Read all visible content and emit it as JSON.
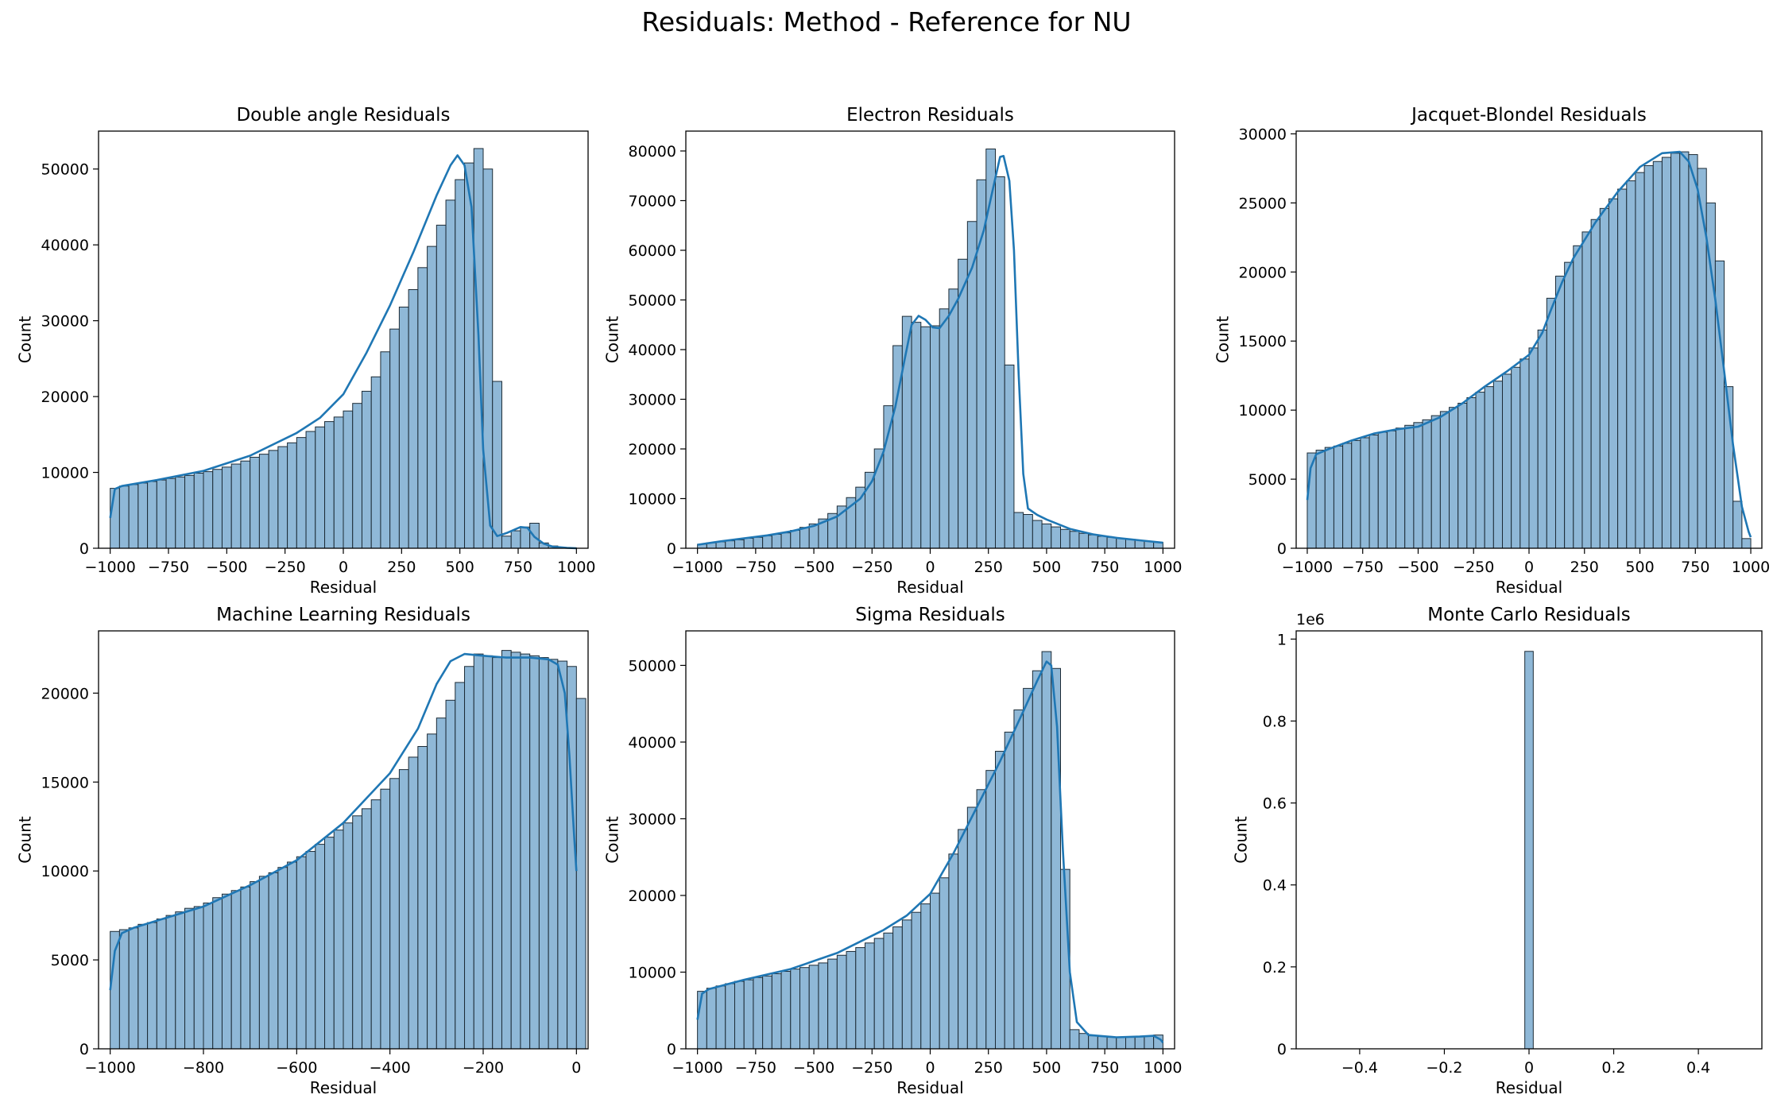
{
  "figure": {
    "title": "Residuals: Method - Reference for NU",
    "colors": {
      "bar_fill": "#8fb8d7",
      "bar_edge": "#1c2b36",
      "kde_line": "#1f77b4"
    }
  },
  "chart_data": [
    {
      "type": "bar",
      "title": "Double angle Residuals",
      "xlabel": "Residual",
      "ylabel": "Count",
      "xlim": [
        -1050,
        1050
      ],
      "ylim": [
        0,
        55000
      ],
      "xticks": [
        -1000,
        -750,
        -500,
        -250,
        0,
        250,
        500,
        750,
        1000
      ],
      "yticks": [
        0,
        10000,
        20000,
        30000,
        40000,
        50000
      ],
      "bin_start": -1000,
      "bin_width": 40,
      "values": [
        7900,
        8200,
        8400,
        8600,
        8800,
        9000,
        9200,
        9400,
        9600,
        9900,
        10100,
        10400,
        10700,
        11100,
        11500,
        12000,
        12400,
        12900,
        13400,
        13900,
        14600,
        15400,
        16000,
        16700,
        17300,
        18100,
        19100,
        20700,
        22600,
        25900,
        28900,
        31800,
        34100,
        37000,
        39800,
        42600,
        45900,
        48600,
        50800,
        52700,
        50000,
        22000,
        1600,
        2300,
        2800,
        3300,
        700,
        300,
        100,
        50
      ],
      "kde": [
        [
          -1000,
          4000
        ],
        [
          -980,
          7800
        ],
        [
          -950,
          8200
        ],
        [
          -800,
          9000
        ],
        [
          -600,
          10200
        ],
        [
          -400,
          12200
        ],
        [
          -200,
          15200
        ],
        [
          -100,
          17200
        ],
        [
          0,
          20300
        ],
        [
          100,
          25800
        ],
        [
          200,
          32000
        ],
        [
          300,
          39000
        ],
        [
          400,
          46500
        ],
        [
          460,
          50500
        ],
        [
          490,
          51800
        ],
        [
          520,
          50500
        ],
        [
          550,
          45000
        ],
        [
          580,
          28000
        ],
        [
          600,
          13000
        ],
        [
          630,
          3000
        ],
        [
          660,
          1600
        ],
        [
          700,
          2000
        ],
        [
          760,
          2800
        ],
        [
          790,
          2700
        ],
        [
          820,
          1500
        ],
        [
          860,
          600
        ],
        [
          900,
          200
        ],
        [
          960,
          50
        ],
        [
          1000,
          0
        ]
      ]
    },
    {
      "type": "bar",
      "title": "Electron Residuals",
      "xlabel": "Residual",
      "ylabel": "Count",
      "xlim": [
        -1050,
        1050
      ],
      "ylim": [
        0,
        84000
      ],
      "xticks": [
        -1000,
        -750,
        -500,
        -250,
        0,
        250,
        500,
        750,
        1000
      ],
      "yticks": [
        0,
        10000,
        20000,
        30000,
        40000,
        50000,
        60000,
        70000,
        80000
      ],
      "bin_start": -1000,
      "bin_width": 40,
      "values": [
        800,
        1100,
        1300,
        1500,
        1700,
        2000,
        2200,
        2500,
        2800,
        3100,
        3600,
        4200,
        4900,
        5900,
        7000,
        8500,
        10200,
        12300,
        15300,
        20000,
        28700,
        40800,
        46700,
        45500,
        44600,
        44800,
        48200,
        52200,
        58200,
        65800,
        74200,
        80400,
        74800,
        36900,
        7200,
        6800,
        5600,
        4900,
        4300,
        3800,
        3400,
        3000,
        2700,
        2400,
        2200,
        2000,
        1800,
        1600,
        1400,
        1200
      ],
      "kde": [
        [
          -1000,
          700
        ],
        [
          -900,
          1400
        ],
        [
          -800,
          2000
        ],
        [
          -700,
          2600
        ],
        [
          -600,
          3400
        ],
        [
          -500,
          4500
        ],
        [
          -400,
          6400
        ],
        [
          -300,
          10000
        ],
        [
          -250,
          13500
        ],
        [
          -200,
          19500
        ],
        [
          -150,
          28500
        ],
        [
          -110,
          38000
        ],
        [
          -80,
          45000
        ],
        [
          -50,
          46800
        ],
        [
          -20,
          46000
        ],
        [
          10,
          44500
        ],
        [
          40,
          44300
        ],
        [
          80,
          46800
        ],
        [
          120,
          50200
        ],
        [
          180,
          56500
        ],
        [
          230,
          64000
        ],
        [
          270,
          72500
        ],
        [
          300,
          78800
        ],
        [
          315,
          79000
        ],
        [
          340,
          74000
        ],
        [
          360,
          60000
        ],
        [
          380,
          35000
        ],
        [
          400,
          15000
        ],
        [
          420,
          8000
        ],
        [
          460,
          6700
        ],
        [
          500,
          5800
        ],
        [
          600,
          3900
        ],
        [
          700,
          2800
        ],
        [
          800,
          2100
        ],
        [
          900,
          1600
        ],
        [
          1000,
          1100
        ]
      ]
    },
    {
      "type": "bar",
      "title": "Jacquet-Blondel Residuals",
      "xlabel": "Residual",
      "ylabel": "Count",
      "xlim": [
        -1050,
        1050
      ],
      "ylim": [
        0,
        30200
      ],
      "xticks": [
        -1000,
        -750,
        -500,
        -250,
        0,
        250,
        500,
        750,
        1000
      ],
      "yticks": [
        0,
        5000,
        10000,
        15000,
        20000,
        25000,
        30000
      ],
      "bin_start": -1000,
      "bin_width": 40,
      "values": [
        6900,
        7100,
        7300,
        7400,
        7600,
        7800,
        8000,
        8200,
        8400,
        8500,
        8700,
        8900,
        9100,
        9300,
        9600,
        9900,
        10200,
        10500,
        10900,
        11300,
        11700,
        12100,
        12600,
        13100,
        13700,
        14500,
        15800,
        18100,
        19700,
        20700,
        21900,
        22900,
        23800,
        24600,
        25300,
        26000,
        26600,
        27200,
        27700,
        28000,
        28300,
        28600,
        28700,
        28500,
        27500,
        25000,
        20800,
        11700,
        3400,
        700
      ],
      "kde": [
        [
          -1000,
          3500
        ],
        [
          -985,
          5800
        ],
        [
          -960,
          6800
        ],
        [
          -900,
          7200
        ],
        [
          -800,
          7800
        ],
        [
          -700,
          8300
        ],
        [
          -600,
          8600
        ],
        [
          -500,
          8800
        ],
        [
          -400,
          9500
        ],
        [
          -300,
          10500
        ],
        [
          -200,
          11700
        ],
        [
          -100,
          12800
        ],
        [
          0,
          14000
        ],
        [
          60,
          15600
        ],
        [
          100,
          17300
        ],
        [
          150,
          19300
        ],
        [
          200,
          21000
        ],
        [
          300,
          23600
        ],
        [
          400,
          25800
        ],
        [
          500,
          27600
        ],
        [
          600,
          28600
        ],
        [
          680,
          28700
        ],
        [
          720,
          28000
        ],
        [
          760,
          26000
        ],
        [
          800,
          22500
        ],
        [
          840,
          18000
        ],
        [
          880,
          12800
        ],
        [
          920,
          7500
        ],
        [
          960,
          3000
        ],
        [
          990,
          1200
        ],
        [
          1000,
          800
        ]
      ]
    },
    {
      "type": "bar",
      "title": "Machine Learning Residuals",
      "xlabel": "Residual",
      "ylabel": "Count",
      "xlim": [
        -1025,
        25
      ],
      "ylim": [
        0,
        23500
      ],
      "xticks": [
        -1000,
        -800,
        -600,
        -400,
        -200,
        0
      ],
      "yticks": [
        0,
        5000,
        10000,
        15000,
        20000
      ],
      "bin_start": -1000,
      "bin_width": 20,
      "values": [
        6600,
        6700,
        6800,
        7000,
        7100,
        7300,
        7500,
        7700,
        7900,
        8000,
        8200,
        8500,
        8700,
        8900,
        9100,
        9400,
        9700,
        9900,
        10200,
        10500,
        10800,
        11100,
        11500,
        11900,
        12300,
        12700,
        13100,
        13500,
        14000,
        14600,
        15200,
        15700,
        16400,
        17000,
        17700,
        18600,
        19600,
        20600,
        21500,
        22200,
        22100,
        22000,
        22400,
        22300,
        22200,
        22100,
        22000,
        21900,
        21800,
        21500,
        19700
      ],
      "kde": [
        [
          -1000,
          3300
        ],
        [
          -990,
          5500
        ],
        [
          -975,
          6500
        ],
        [
          -950,
          6800
        ],
        [
          -900,
          7200
        ],
        [
          -800,
          8000
        ],
        [
          -700,
          9200
        ],
        [
          -600,
          10600
        ],
        [
          -500,
          12700
        ],
        [
          -400,
          15500
        ],
        [
          -340,
          18000
        ],
        [
          -300,
          20500
        ],
        [
          -270,
          21800
        ],
        [
          -240,
          22200
        ],
        [
          -200,
          22100
        ],
        [
          -150,
          22000
        ],
        [
          -100,
          22000
        ],
        [
          -60,
          21900
        ],
        [
          -40,
          21600
        ],
        [
          -25,
          20000
        ],
        [
          -15,
          16500
        ],
        [
          -5,
          12000
        ],
        [
          0,
          10000
        ]
      ]
    },
    {
      "type": "bar",
      "title": "Sigma Residuals",
      "xlabel": "Residual",
      "ylabel": "Count",
      "xlim": [
        -1050,
        1050
      ],
      "ylim": [
        0,
        54500
      ],
      "xticks": [
        -1000,
        -750,
        -500,
        -250,
        0,
        250,
        500,
        750,
        1000
      ],
      "yticks": [
        0,
        10000,
        20000,
        30000,
        40000,
        50000
      ],
      "bin_start": -1000,
      "bin_width": 40,
      "values": [
        7500,
        7900,
        8200,
        8500,
        8800,
        9000,
        9300,
        9500,
        9800,
        10100,
        10400,
        10600,
        10900,
        11200,
        11700,
        12200,
        12700,
        13200,
        13800,
        14400,
        15100,
        15900,
        16800,
        17800,
        18900,
        20300,
        22300,
        25400,
        28600,
        31500,
        33800,
        36300,
        38800,
        41300,
        44200,
        47000,
        49300,
        51800,
        49600,
        23400,
        2500,
        2000,
        1700,
        1600,
        1500,
        1500,
        1500,
        1600,
        1700,
        1800
      ],
      "kde": [
        [
          -1000,
          3800
        ],
        [
          -980,
          7200
        ],
        [
          -950,
          7800
        ],
        [
          -800,
          9000
        ],
        [
          -600,
          10400
        ],
        [
          -400,
          12500
        ],
        [
          -200,
          15500
        ],
        [
          -100,
          17400
        ],
        [
          0,
          20200
        ],
        [
          100,
          25500
        ],
        [
          200,
          31500
        ],
        [
          300,
          37500
        ],
        [
          400,
          44000
        ],
        [
          460,
          48000
        ],
        [
          500,
          50500
        ],
        [
          520,
          50000
        ],
        [
          545,
          42000
        ],
        [
          570,
          26000
        ],
        [
          600,
          10000
        ],
        [
          630,
          3500
        ],
        [
          680,
          1800
        ],
        [
          800,
          1500
        ],
        [
          900,
          1600
        ],
        [
          960,
          1700
        ],
        [
          990,
          1200
        ],
        [
          1000,
          800
        ]
      ]
    },
    {
      "type": "bar",
      "title": "Monte Carlo Residuals",
      "xlabel": "Residual",
      "ylabel": "Count",
      "offset_text": "1e6",
      "xlim": [
        -0.55,
        0.55
      ],
      "ylim": [
        0,
        1.02
      ],
      "xticks": [
        -0.4,
        -0.2,
        0.0,
        0.2,
        0.4
      ],
      "yticks": [
        0.0,
        0.2,
        0.4,
        0.6,
        0.8,
        1.0
      ],
      "bin_start": -0.01,
      "bin_width": 0.02,
      "values": [
        0.97
      ],
      "kde": []
    }
  ]
}
